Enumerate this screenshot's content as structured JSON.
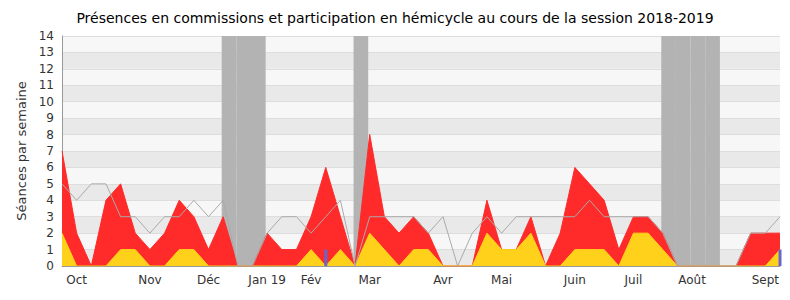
{
  "chart_data": {
    "type": "line",
    "title": "Présences en commissions et participation en hémicycle au cours de la session 2018-2019",
    "y_label": "Séances par semaine",
    "categories": [
      null,
      "Oct",
      null,
      null,
      null,
      null,
      "Nov",
      null,
      null,
      null,
      "Déc",
      null,
      null,
      null,
      "Jan 19",
      null,
      null,
      "Fév",
      null,
      null,
      null,
      "Mar",
      null,
      null,
      null,
      null,
      "Avr",
      null,
      null,
      null,
      "Mai",
      null,
      null,
      null,
      null,
      "Juin",
      null,
      null,
      null,
      "Juil",
      null,
      null,
      null,
      "Août",
      null,
      null,
      null,
      null,
      "Sept",
      null
    ],
    "series": [
      {
        "type": "band",
        "color": "#b3b3b3",
        "values": [
          null,
          null,
          null,
          null,
          null,
          null,
          null,
          null,
          null,
          null,
          null,
          14,
          14,
          14,
          null,
          null,
          null,
          null,
          null,
          null,
          14,
          null,
          null,
          null,
          null,
          null,
          null,
          null,
          null,
          null,
          null,
          null,
          null,
          null,
          null,
          null,
          null,
          null,
          null,
          null,
          null,
          14,
          14,
          14,
          14,
          null,
          null,
          null,
          null,
          null
        ]
      },
      {
        "type": "area",
        "color": "#ff2a2a",
        "values": [
          7,
          2,
          0,
          4,
          5,
          2,
          1,
          2,
          4,
          3,
          1,
          3,
          0,
          0,
          2,
          1,
          1,
          3,
          6,
          3,
          0,
          8,
          3,
          2,
          3,
          2,
          0,
          0,
          0,
          4,
          1,
          1,
          3,
          0,
          2,
          6,
          5,
          4,
          1,
          3,
          3,
          2,
          0,
          0,
          0,
          0,
          0,
          2,
          2,
          2
        ]
      },
      {
        "type": "area",
        "color": "#ffd11a",
        "values": [
          2,
          0,
          0,
          0,
          1,
          1,
          0,
          0,
          1,
          1,
          0,
          0,
          0,
          0,
          0,
          0,
          0,
          1,
          0,
          1,
          0,
          2,
          1,
          0,
          1,
          1,
          0,
          0,
          0,
          2,
          1,
          1,
          2,
          0,
          0,
          1,
          1,
          1,
          0,
          2,
          2,
          1,
          0,
          0,
          0,
          0,
          0,
          0,
          0,
          1
        ]
      },
      {
        "type": "line",
        "color": "#aaaaaa",
        "values": [
          5,
          4,
          5,
          5,
          3,
          3,
          2,
          3,
          3,
          4,
          3,
          4,
          0,
          0,
          2,
          3,
          3,
          2,
          3,
          4,
          0,
          3,
          3,
          3,
          3,
          2,
          3,
          0,
          2,
          3,
          2,
          3,
          3,
          3,
          3,
          3,
          4,
          3,
          3,
          3,
          3,
          2,
          0,
          0,
          0,
          0,
          0,
          2,
          2,
          3
        ]
      },
      {
        "type": "bar",
        "color": "#6666cc",
        "values": [
          0,
          0,
          0,
          0,
          0,
          0,
          0,
          0,
          0,
          0,
          0,
          0,
          0,
          0,
          0,
          0,
          0,
          0,
          1,
          0,
          0,
          0,
          0,
          0,
          0,
          0,
          0,
          0,
          0,
          0,
          0,
          0,
          0,
          0,
          0,
          0,
          0,
          0,
          0,
          0,
          0,
          0,
          0,
          0,
          0,
          0,
          0,
          0,
          0,
          1
        ]
      }
    ],
    "ylim": [
      0,
      14
    ],
    "yticks": [
      0,
      1,
      2,
      3,
      4,
      5,
      6,
      7,
      8,
      9,
      10,
      11,
      12,
      13,
      14
    ],
    "grid": true,
    "stacked": false
  }
}
